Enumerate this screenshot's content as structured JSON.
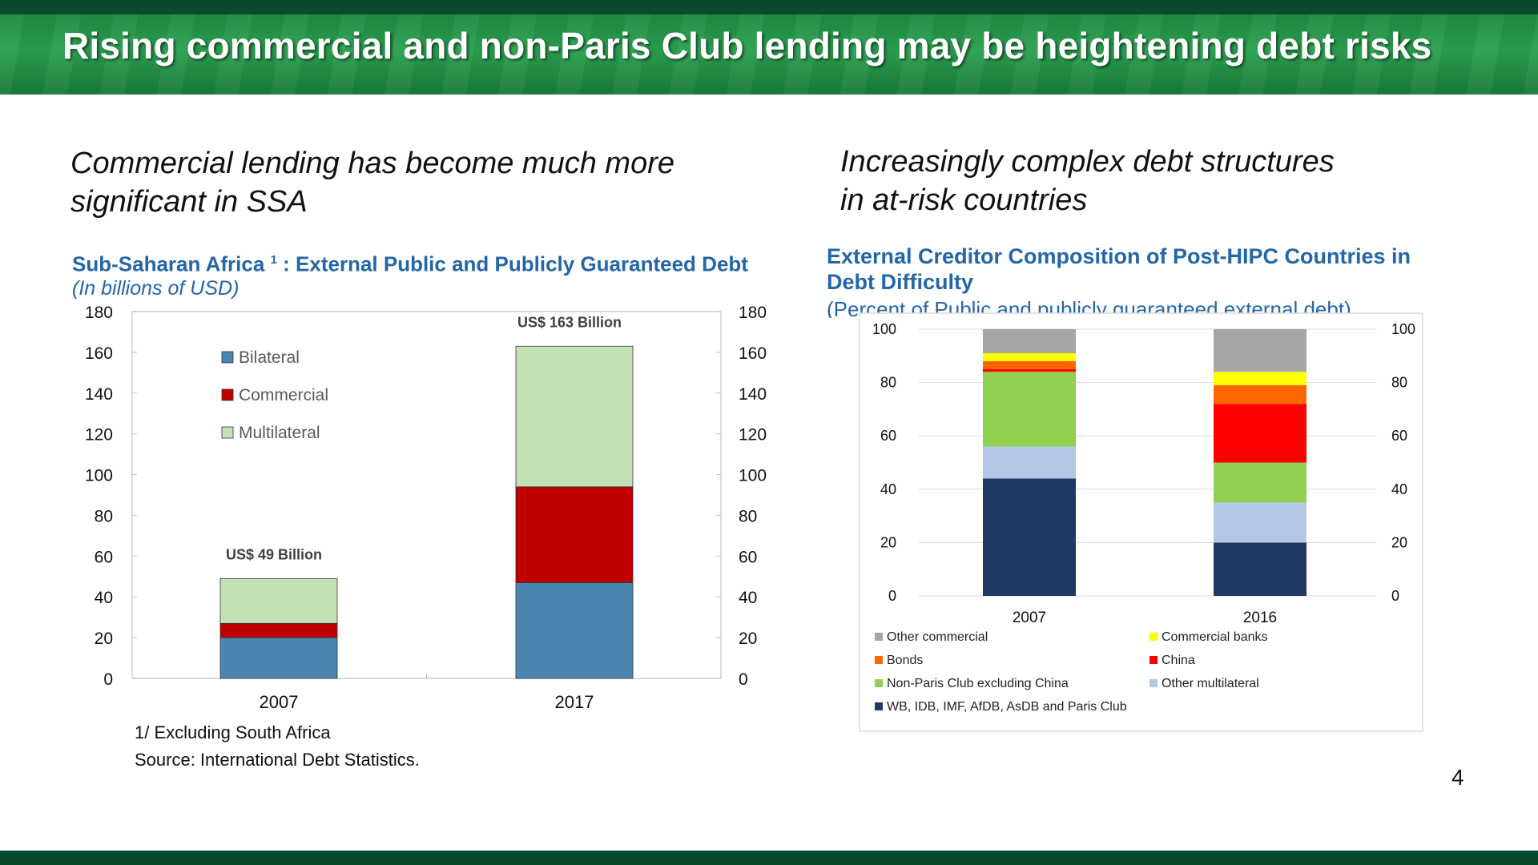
{
  "slide": {
    "title": "Rising commercial and non-Paris Club lending may be heightening debt risks",
    "page_number": "4",
    "colors": {
      "banner": "#23913f",
      "rule": "#0a4a2c",
      "chart_title": "#2466a8"
    }
  },
  "left": {
    "heading_line1": "Commercial lending has become much more",
    "heading_line2": "significant in SSA",
    "chart_title": "Sub-Saharan Africa",
    "chart_title_sup": "1",
    "chart_title_rest": ":  External Public and Publicly Guaranteed Debt",
    "chart_subtitle": "(In billions of USD)",
    "note1": "1/ Excluding South Africa",
    "note2": "Source: International Debt Statistics."
  },
  "right": {
    "heading_line1": "Increasingly complex debt structures",
    "heading_line2": "in at-risk countries",
    "chart_title_line1": "External Creditor Composition of Post-HIPC Countries in",
    "chart_title_line2": "Debt Difficulty",
    "chart_subtitle": "(Percent of Public and publicly guaranteed external debt)"
  },
  "chart_data": [
    {
      "type": "bar",
      "stacked": true,
      "categories": [
        "2007",
        "2017"
      ],
      "series": [
        {
          "name": "Bilateral",
          "values": [
            20,
            47
          ],
          "color": "#4a86b0"
        },
        {
          "name": "Commercial",
          "values": [
            7,
            47
          ],
          "color": "#c00000"
        },
        {
          "name": "Multilateral",
          "values": [
            22,
            69
          ],
          "color": "#c5e0b4"
        }
      ],
      "annotations": [
        "US$ 49  Billion",
        "US$ 163 Billion"
      ],
      "ylim": [
        0,
        180
      ],
      "yticks": [
        "0",
        "20",
        "40",
        "60",
        "80",
        "100",
        "120",
        "140",
        "160",
        "180"
      ],
      "secondary_y": true,
      "grid": false,
      "legend": "top-left"
    },
    {
      "type": "bar",
      "stacked": true,
      "categories": [
        "2007",
        "2016"
      ],
      "series": [
        {
          "name": "WB, IDB, IMF, AfDB, AsDB and Paris Club",
          "values": [
            44,
            20
          ],
          "color": "#1f3864"
        },
        {
          "name": "Other multilateral",
          "values": [
            12,
            15
          ],
          "color": "#b4c7e7"
        },
        {
          "name": "Non-Paris Club excluding China",
          "values": [
            28,
            15
          ],
          "color": "#92d050"
        },
        {
          "name": "China",
          "values": [
            1,
            22
          ],
          "color": "#ff0000"
        },
        {
          "name": "Bonds",
          "values": [
            3,
            7
          ],
          "color": "#ff6600"
        },
        {
          "name": "Commercial banks",
          "values": [
            3,
            5
          ],
          "color": "#ffff00"
        },
        {
          "name": "Other commercial",
          "values": [
            9,
            16
          ],
          "color": "#a6a6a6"
        }
      ],
      "ylim": [
        0,
        100
      ],
      "yticks": [
        "0",
        "20",
        "40",
        "60",
        "80",
        "100"
      ],
      "secondary_y": true,
      "grid": true,
      "legend": "bottom"
    }
  ]
}
